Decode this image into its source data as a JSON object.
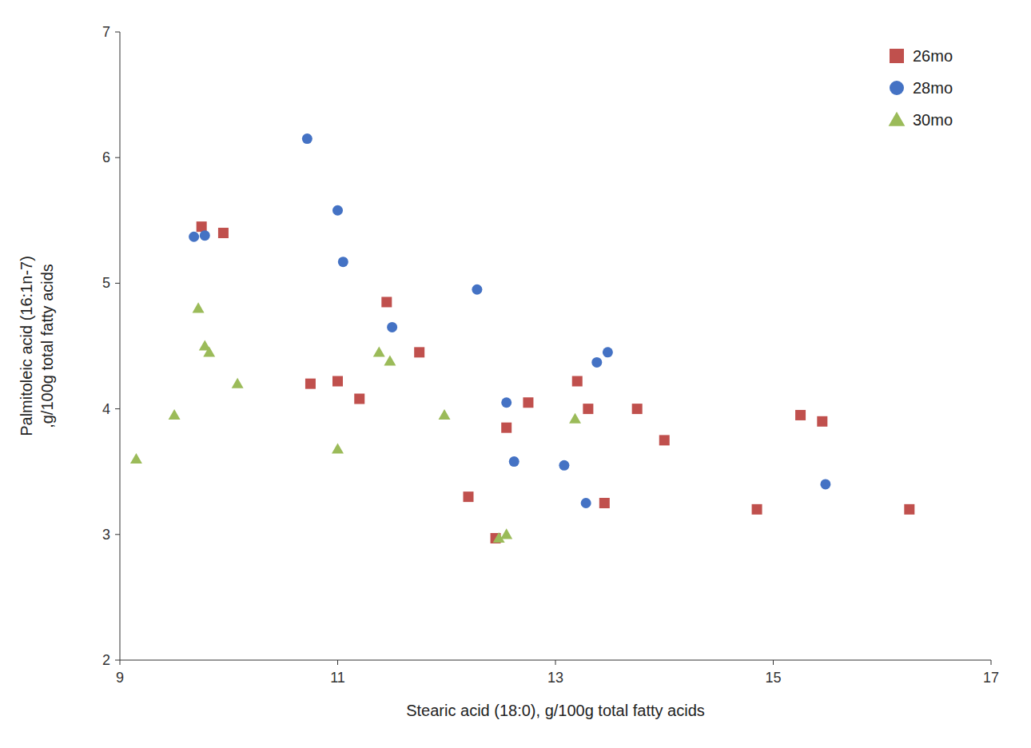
{
  "chart_data": {
    "type": "scatter",
    "series": [
      {
        "name": "26mo",
        "color": "#C0504D",
        "marker": "square",
        "x": [
          9.75,
          9.95,
          10.75,
          11.0,
          11.2,
          11.45,
          11.75,
          12.2,
          12.45,
          12.55,
          12.75,
          13.2,
          13.3,
          13.45,
          13.75,
          14.0,
          14.85,
          15.25,
          15.45,
          16.25
        ],
        "values": [
          5.45,
          5.4,
          4.2,
          4.22,
          4.08,
          4.85,
          4.45,
          3.3,
          2.97,
          3.85,
          4.05,
          4.22,
          4.0,
          3.25,
          4.0,
          3.75,
          3.2,
          3.95,
          3.9,
          3.2
        ]
      },
      {
        "name": "28mo",
        "color": "#4472C4",
        "marker": "circle",
        "x": [
          9.68,
          9.78,
          10.72,
          11.0,
          11.05,
          11.5,
          12.28,
          12.55,
          12.62,
          13.08,
          13.28,
          13.38,
          13.48,
          15.48
        ],
        "values": [
          5.37,
          5.38,
          6.15,
          5.58,
          5.17,
          4.65,
          4.95,
          4.05,
          3.58,
          3.55,
          3.25,
          4.37,
          4.45,
          3.4
        ]
      },
      {
        "name": "30mo",
        "color": "#9BBB59",
        "marker": "triangle",
        "x": [
          9.15,
          9.5,
          9.72,
          9.78,
          9.82,
          10.08,
          11.0,
          11.38,
          11.48,
          11.98,
          12.48,
          12.55,
          13.18
        ],
        "values": [
          3.6,
          3.95,
          4.8,
          4.5,
          4.45,
          4.2,
          3.68,
          4.45,
          4.38,
          3.95,
          2.97,
          3.0,
          3.92
        ]
      }
    ],
    "x_label": "Stearic acid (18:0), g/100g total fatty acids",
    "y_label": "Palmitoleic acid (16:1n-7)\n,g/100g total fatty acids",
    "xlim": [
      9,
      17
    ],
    "ylim": [
      2,
      7
    ],
    "xticks": [
      9,
      11,
      13,
      15,
      17
    ],
    "yticks": [
      2,
      3,
      4,
      5,
      6,
      7
    ],
    "grid": false,
    "legend": "upper right"
  }
}
